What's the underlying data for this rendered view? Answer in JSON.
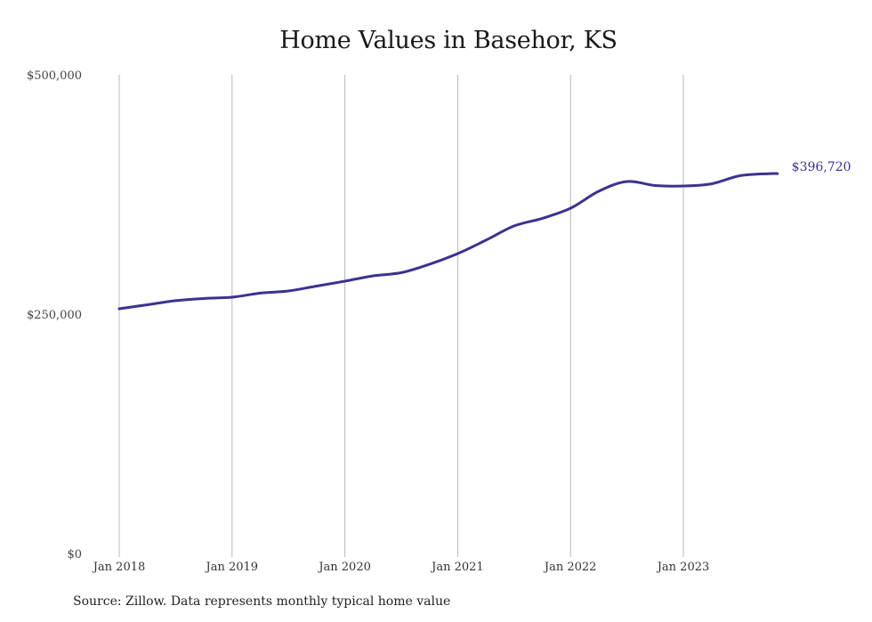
{
  "title": "Home Values in Basehor, KS",
  "source": "Source: Zillow. Data represents monthly typical home value",
  "end_label": "$396,720",
  "colors": {
    "line": "#3a3391",
    "grid": "#b8b8b8",
    "end_label": "#3a3391"
  },
  "y_ticks": [
    "$500,000",
    "$250,000",
    "$0"
  ],
  "x_ticks": [
    "Jan 2018",
    "Jan 2019",
    "Jan 2020",
    "Jan 2021",
    "Jan 2022",
    "Jan 2023"
  ],
  "chart_data": {
    "type": "line",
    "title": "Home Values in Basehor, KS",
    "xlabel": "",
    "ylabel": "",
    "ylim": [
      0,
      500000
    ],
    "grid": {
      "vertical": true,
      "horizontal": false
    },
    "legend": "none",
    "annotations": [
      "$396,720"
    ],
    "x": [
      "Jan 2018",
      "Apr 2018",
      "Jul 2018",
      "Oct 2018",
      "Jan 2019",
      "Apr 2019",
      "Jul 2019",
      "Oct 2019",
      "Jan 2020",
      "Apr 2020",
      "Jul 2020",
      "Oct 2020",
      "Jan 2021",
      "Apr 2021",
      "Jul 2021",
      "Oct 2021",
      "Jan 2022",
      "Apr 2022",
      "Jul 2022",
      "Oct 2022",
      "Jan 2023",
      "Apr 2023",
      "Jul 2023",
      "Oct 2023",
      "Nov 2023"
    ],
    "series": [
      {
        "name": "Typical home value",
        "values": [
          255600,
          259800,
          264000,
          266300,
          267700,
          271900,
          274200,
          279300,
          284400,
          290000,
          293300,
          302100,
          313200,
          327200,
          342100,
          350000,
          360600,
          378300,
          388500,
          384300,
          383800,
          386100,
          394500,
          396700,
          396720
        ]
      }
    ],
    "source": "Source: Zillow. Data represents monthly typical home value"
  }
}
